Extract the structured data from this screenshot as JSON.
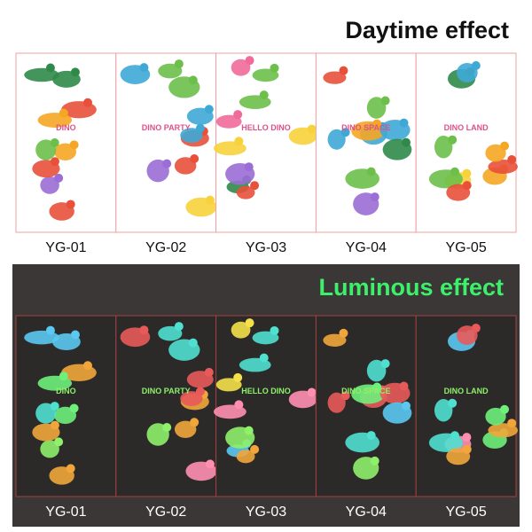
{
  "daytime": {
    "title": "Daytime effect",
    "sheets": [
      {
        "label": "YG-01",
        "sticker_text": "DINO"
      },
      {
        "label": "YG-02",
        "sticker_text": "DINO PARTY"
      },
      {
        "label": "YG-03",
        "sticker_text": "HELLO DINO"
      },
      {
        "label": "YG-04",
        "sticker_text": "DINO SPACE"
      },
      {
        "label": "YG-05",
        "sticker_text": "DINO LAND"
      }
    ]
  },
  "luminous": {
    "title": "Luminous effect",
    "sheets": [
      {
        "label": "YG-01",
        "sticker_text": "DINO"
      },
      {
        "label": "YG-02",
        "sticker_text": "DINO PARTY"
      },
      {
        "label": "YG-03",
        "sticker_text": "HELLO DINO"
      },
      {
        "label": "YG-04",
        "sticker_text": "DINO SPACE"
      },
      {
        "label": "YG-05",
        "sticker_text": "DINO LAND"
      }
    ]
  }
}
